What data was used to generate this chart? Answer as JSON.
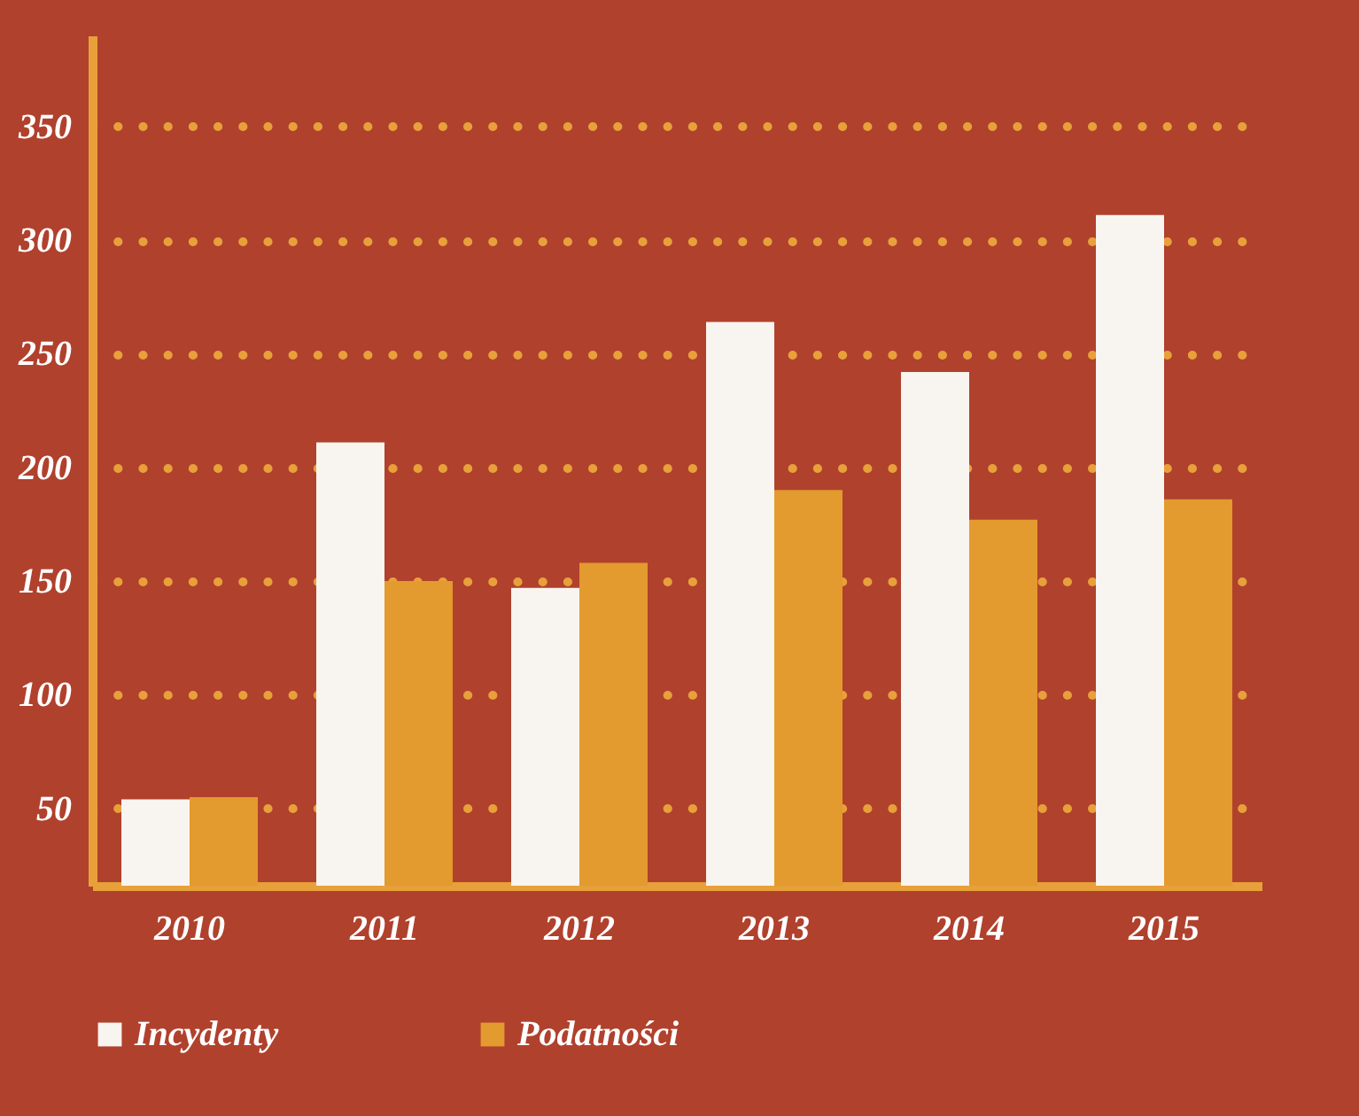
{
  "chart_data": {
    "type": "bar",
    "categories": [
      "2010",
      "2011",
      "2012",
      "2013",
      "2014",
      "2015"
    ],
    "series": [
      {
        "name": "Incydenty",
        "color": "#f8f4ef",
        "values": [
          54,
          211,
          147,
          264,
          242,
          311
        ]
      },
      {
        "name": "Podatności",
        "color": "#e39a2e",
        "values": [
          55,
          150,
          158,
          190,
          177,
          186
        ]
      }
    ],
    "ylim": [
      16,
      390
    ],
    "yticks": [
      50,
      100,
      150,
      200,
      250,
      300,
      350
    ],
    "grid": "y",
    "legend": "bottom"
  }
}
